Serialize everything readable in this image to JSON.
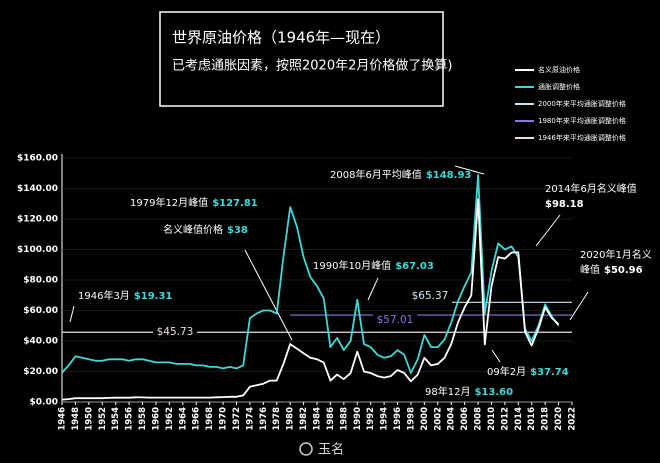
{
  "chart_data": {
    "type": "line",
    "title": "世界原油价格（1946年—现在）",
    "subtitle": "已考虑通胀因素，按照2020年2月价格做了换算)",
    "x": [
      1946,
      1947,
      1948,
      1949,
      1950,
      1951,
      1952,
      1953,
      1954,
      1955,
      1956,
      1957,
      1958,
      1959,
      1960,
      1961,
      1962,
      1963,
      1964,
      1965,
      1966,
      1967,
      1968,
      1969,
      1970,
      1971,
      1972,
      1973,
      1974,
      1975,
      1976,
      1977,
      1978,
      1979,
      1980,
      1981,
      1982,
      1983,
      1984,
      1985,
      1986,
      1987,
      1988,
      1989,
      1990,
      1991,
      1992,
      1993,
      1994,
      1995,
      1996,
      1997,
      1998,
      1999,
      2000,
      2001,
      2002,
      2003,
      2004,
      2005,
      2006,
      2007,
      2008,
      2009,
      2010,
      2011,
      2012,
      2013,
      2014,
      2015,
      2016,
      2017,
      2018,
      2019,
      2020
    ],
    "series": [
      {
        "name": "名义原油价格",
        "color": "#ffffff",
        "values": [
          1.6,
          1.9,
          2.5,
          2.5,
          2.5,
          2.5,
          2.5,
          2.7,
          2.8,
          2.8,
          2.8,
          3.1,
          3.0,
          2.9,
          2.9,
          2.9,
          2.9,
          2.9,
          2.9,
          2.9,
          2.9,
          2.9,
          2.9,
          3.1,
          3.2,
          3.4,
          3.4,
          4.3,
          10,
          11,
          12,
          14,
          14,
          25,
          38,
          35,
          32,
          29,
          28,
          26,
          14,
          18,
          15,
          19,
          33,
          20,
          19,
          17,
          16,
          17,
          21,
          19,
          13.6,
          18,
          29,
          24,
          25,
          29,
          38,
          52,
          62,
          70,
          133,
          37.74,
          76,
          95,
          94,
          98,
          98.18,
          46,
          37,
          48,
          62,
          55,
          50.96
        ]
      },
      {
        "name": "通胀调整价格",
        "color": "#3fd8d8",
        "values": [
          19.31,
          24,
          30,
          29,
          28,
          27,
          27,
          28,
          28,
          28,
          27,
          28,
          28,
          27,
          26,
          26,
          26,
          25,
          25,
          25,
          24,
          24,
          23,
          23,
          22,
          23,
          22,
          24,
          55,
          58,
          60,
          60,
          58,
          95,
          127.81,
          115,
          95,
          82,
          76,
          68,
          36,
          42,
          34,
          40,
          67.03,
          38,
          36,
          31,
          29,
          30,
          34,
          31,
          19,
          28,
          44,
          36,
          36,
          41,
          52,
          66,
          76,
          85,
          148.93,
          58,
          86,
          104,
          100,
          102,
          95,
          48,
          40,
          50,
          64,
          56,
          50
        ]
      }
    ],
    "reference_lines": [
      {
        "name": "2000年来平均通胀调整价格",
        "value": 65.37,
        "label": "$65.37",
        "from": 2000,
        "color": "#cfe6ee"
      },
      {
        "name": "1980年来平均通胀调整价格",
        "value": 57.01,
        "label": "$57.01",
        "from": 1980,
        "color": "#8378e0"
      },
      {
        "name": "1946年来平均通胀调整价格",
        "value": 45.73,
        "label": "$45.73",
        "from": 1946,
        "color": "#eadbe6"
      }
    ],
    "annotations": [
      {
        "text": "1946年3月",
        "value_label": "$19.31"
      },
      {
        "text": "1979年12月峰值",
        "value_label": "$127.81"
      },
      {
        "text": "名义峰值价格",
        "value_label": "$38"
      },
      {
        "text": "1990年10月峰值",
        "value_label": "$67.03"
      },
      {
        "text": "2008年6月平均峰值",
        "value_label": "$148.93"
      },
      {
        "text": "2014年6月名义峰值",
        "value_label": "$98.18"
      },
      {
        "text": "2020年1月名义",
        "text2": "峰值",
        "value_label": "$50.96"
      },
      {
        "text": "09年2月",
        "value_label": "$37.74"
      },
      {
        "text": "98年12月",
        "value_label": "$13.60"
      }
    ],
    "xlim": [
      1946,
      2022
    ],
    "xticks": [
      1946,
      1948,
      1950,
      1952,
      1954,
      1956,
      1958,
      1960,
      1962,
      1964,
      1966,
      1968,
      1970,
      1972,
      1974,
      1976,
      1978,
      1980,
      1982,
      1984,
      1986,
      1988,
      1990,
      1992,
      1994,
      1996,
      1998,
      2000,
      2002,
      2004,
      2006,
      2008,
      2010,
      2012,
      2014,
      2016,
      2018,
      2020,
      2022
    ],
    "ylim": [
      0,
      160
    ],
    "yticks": [
      {
        "value": 0,
        "label": "$0.00"
      },
      {
        "value": 20,
        "label": "$20.00"
      },
      {
        "value": 40,
        "label": "$40.00"
      },
      {
        "value": 60,
        "label": "$60.00"
      },
      {
        "value": 80,
        "label": "$80.00"
      },
      {
        "value": 100,
        "label": "$100.00"
      },
      {
        "value": 120,
        "label": "$120.00"
      },
      {
        "value": 140,
        "label": "$140.00"
      },
      {
        "value": 160,
        "label": "$160.00"
      }
    ],
    "watermark": "玉名"
  }
}
